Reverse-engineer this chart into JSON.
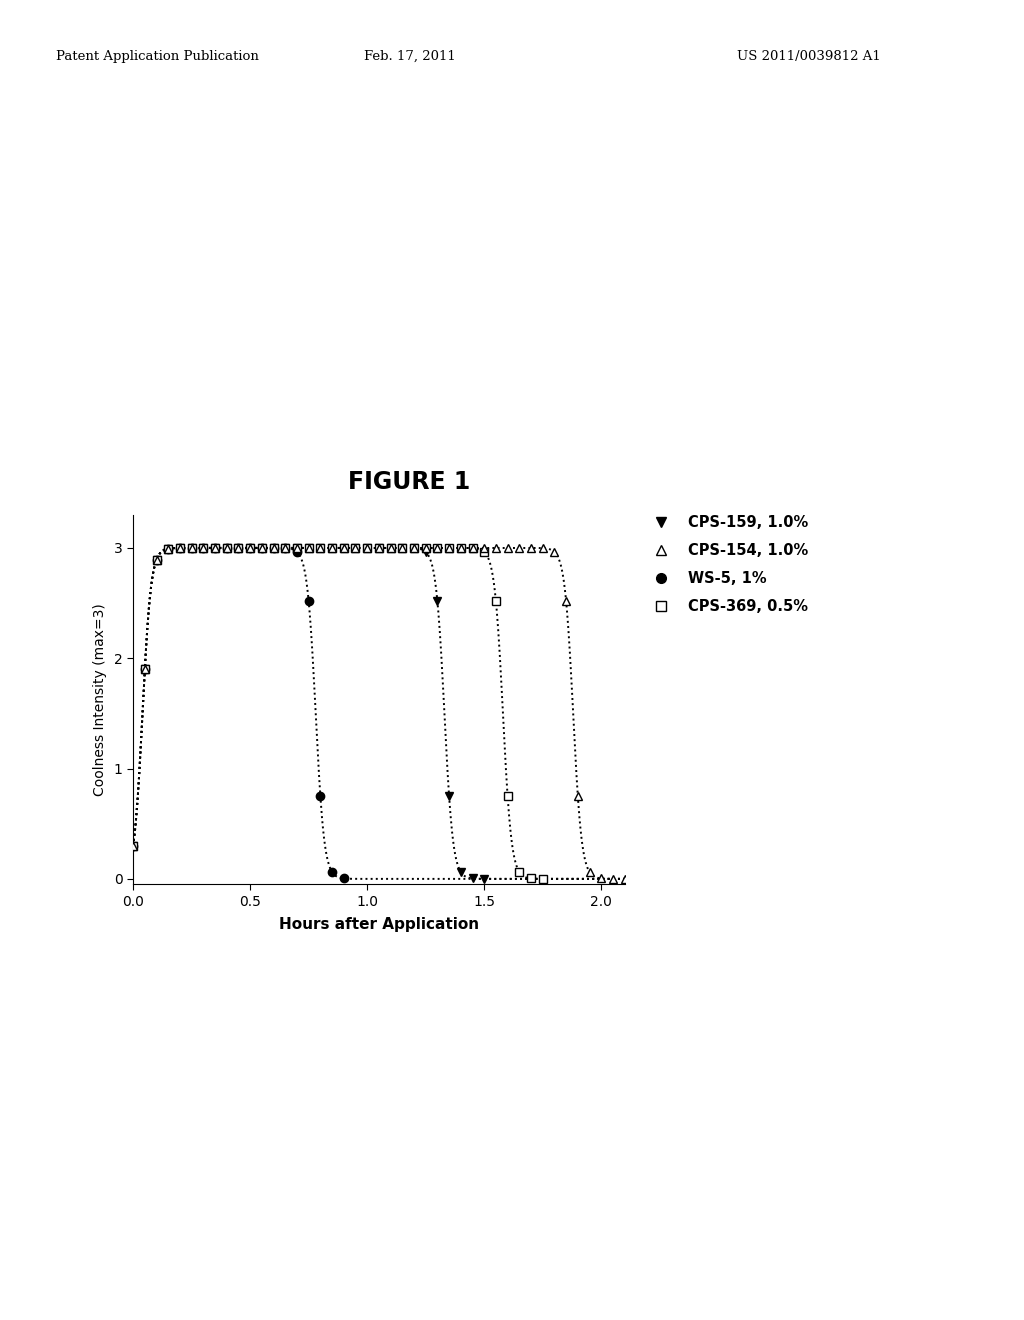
{
  "title": "FIGURE 1",
  "xlabel": "Hours after Application",
  "ylabel": "Coolness Intensity (max=3)",
  "xlim": [
    0.0,
    2.1
  ],
  "ylim": [
    -0.05,
    3.3
  ],
  "xticks": [
    0.0,
    0.5,
    1.0,
    1.5,
    2.0
  ],
  "yticks": [
    0,
    1,
    2,
    3
  ],
  "header_left": "Patent Application Publication",
  "header_center": "Feb. 17, 2011",
  "header_right": "US 2011/0039812 A1",
  "series": [
    {
      "name": "WS-5, 1%",
      "marker": "o",
      "fillstyle": "full",
      "x_rise": 0.04,
      "x_fall": 0.78,
      "rise_rate": 55,
      "fall_rate": 55,
      "marker_x": [
        0.0,
        0.05,
        0.1,
        0.15,
        0.2,
        0.25,
        0.3,
        0.35,
        0.4,
        0.45,
        0.5,
        0.55,
        0.6,
        0.65,
        0.7,
        0.75,
        0.8,
        0.85,
        0.9
      ]
    },
    {
      "name": "CPS-159, 1.0%",
      "marker": "v",
      "fillstyle": "full",
      "x_rise": 0.04,
      "x_fall": 1.33,
      "rise_rate": 55,
      "fall_rate": 55,
      "marker_x": [
        0.0,
        0.05,
        0.1,
        0.15,
        0.2,
        0.25,
        0.3,
        0.35,
        0.4,
        0.45,
        0.5,
        0.55,
        0.6,
        0.65,
        0.7,
        0.75,
        0.8,
        0.85,
        0.9,
        0.95,
        1.0,
        1.05,
        1.1,
        1.15,
        1.2,
        1.25,
        1.3,
        1.35,
        1.4,
        1.45,
        1.5
      ]
    },
    {
      "name": "CPS-369, 0.5%",
      "marker": "s",
      "fillstyle": "none",
      "x_rise": 0.04,
      "x_fall": 1.58,
      "rise_rate": 55,
      "fall_rate": 55,
      "marker_x": [
        0.0,
        0.05,
        0.1,
        0.15,
        0.2,
        0.25,
        0.3,
        0.35,
        0.4,
        0.45,
        0.5,
        0.55,
        0.6,
        0.65,
        0.7,
        0.75,
        0.8,
        0.85,
        0.9,
        0.95,
        1.0,
        1.05,
        1.1,
        1.15,
        1.2,
        1.25,
        1.3,
        1.35,
        1.4,
        1.45,
        1.5,
        1.55,
        1.6,
        1.65,
        1.7,
        1.75
      ]
    },
    {
      "name": "CPS-154, 1.0%",
      "marker": "^",
      "fillstyle": "none",
      "x_rise": 0.04,
      "x_fall": 1.88,
      "rise_rate": 55,
      "fall_rate": 55,
      "marker_x": [
        0.0,
        0.05,
        0.1,
        0.15,
        0.2,
        0.25,
        0.3,
        0.35,
        0.4,
        0.45,
        0.5,
        0.55,
        0.6,
        0.65,
        0.7,
        0.75,
        0.8,
        0.85,
        0.9,
        0.95,
        1.0,
        1.05,
        1.1,
        1.15,
        1.2,
        1.25,
        1.3,
        1.35,
        1.4,
        1.45,
        1.5,
        1.55,
        1.6,
        1.65,
        1.7,
        1.75,
        1.8,
        1.85,
        1.9,
        1.95,
        2.0,
        2.05,
        2.1
      ]
    }
  ],
  "legend_items": [
    {
      "marker": "v",
      "fillstyle": "full",
      "label": "CPS-159, 1.0%"
    },
    {
      "marker": "^",
      "fillstyle": "none",
      "label": "CPS-154, 1.0%"
    },
    {
      "marker": "o",
      "fillstyle": "full",
      "label": "WS-5, 1%"
    },
    {
      "marker": "s",
      "fillstyle": "none",
      "label": "CPS-369, 0.5%"
    }
  ]
}
